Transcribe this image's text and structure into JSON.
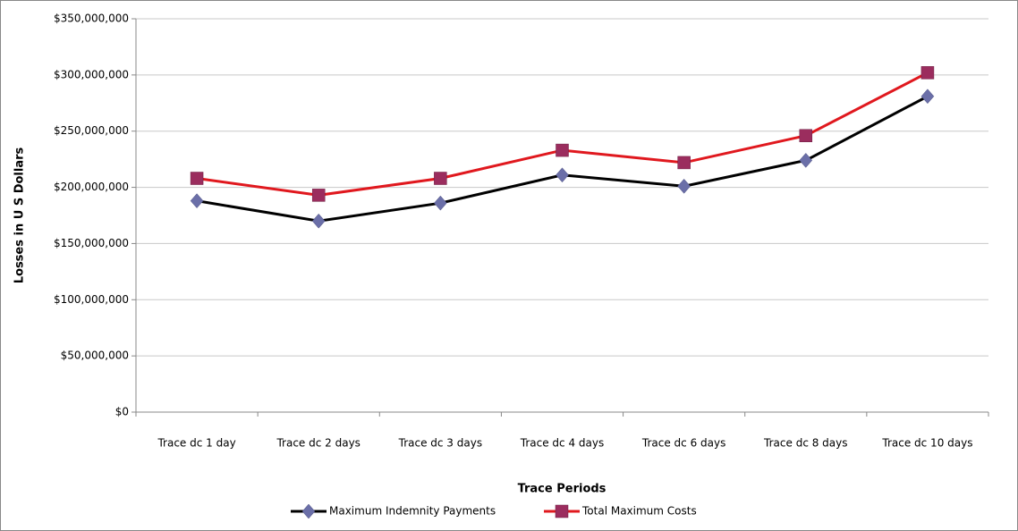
{
  "chart_data": {
    "type": "line",
    "y_label": "Losses in U S Dollars",
    "x_label": "Trace Periods",
    "categories": [
      "Trace dc 1 day",
      "Trace dc 2 days",
      "Trace dc 3 days",
      "Trace dc 4 days",
      "Trace dc 6 days",
      "Trace dc 8 days",
      "Trace dc 10 days"
    ],
    "series": [
      {
        "name": "Maximum Indemnity Payments",
        "color": "#000000",
        "marker": "diamond",
        "marker_color": "#6b6fa8",
        "values": [
          188000000,
          170000000,
          186000000,
          211000000,
          201000000,
          224000000,
          281000000
        ]
      },
      {
        "name": "Total Maximum Costs",
        "color": "#e0181e",
        "marker": "square",
        "marker_color": "#9b2d5e",
        "values": [
          208000000,
          193000000,
          208000000,
          233000000,
          222000000,
          246000000,
          302000000
        ]
      }
    ],
    "ylim": [
      0,
      350000000
    ],
    "yticks": [
      {
        "value": 0,
        "label": "$0"
      },
      {
        "value": 50000000,
        "label": "$50,000,000"
      },
      {
        "value": 100000000,
        "label": "$100,000,000"
      },
      {
        "value": 150000000,
        "label": "$150,000,000"
      },
      {
        "value": 200000000,
        "label": "$200,000,000"
      },
      {
        "value": 250000000,
        "label": "$250,000,000"
      },
      {
        "value": 300000000,
        "label": "$300,000,000"
      },
      {
        "value": 350000000,
        "label": "$350,000,000"
      }
    ],
    "grid": true,
    "legend": "bottom"
  }
}
